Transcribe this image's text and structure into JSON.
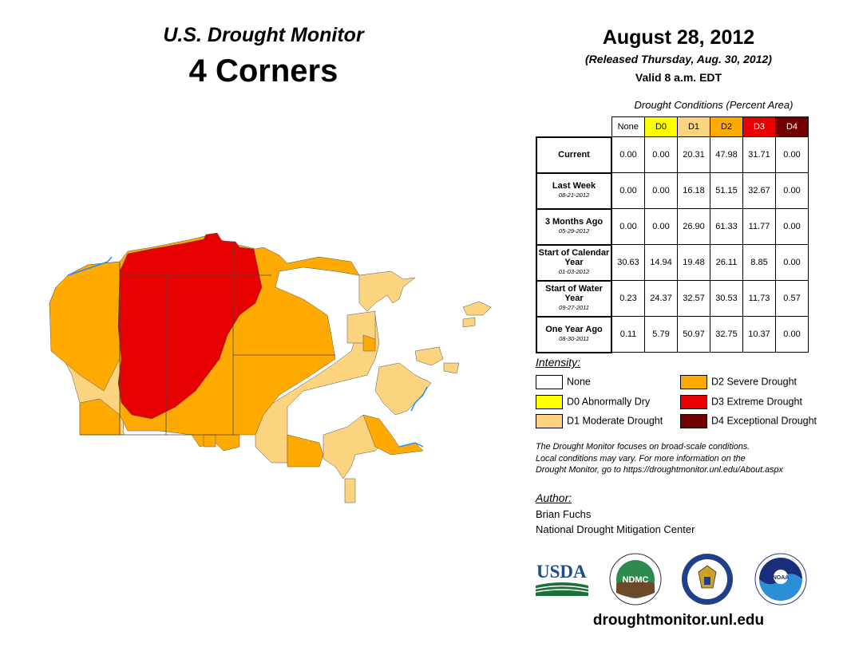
{
  "header": {
    "title": "U.S. Drought Monitor",
    "region": "4 Corners",
    "date": "August 28, 2012",
    "released": "(Released Thursday, Aug. 30, 2012)",
    "valid": "Valid 8 a.m. EDT"
  },
  "table": {
    "caption": "Drought Conditions (Percent Area)",
    "columns": [
      "None",
      "D0",
      "D1",
      "D2",
      "D3",
      "D4"
    ],
    "column_colors": [
      "#ffffff",
      "#ffff00",
      "#fcd37f",
      "#ffaa00",
      "#e60000",
      "#730000"
    ],
    "rows": [
      {
        "label": "Current",
        "date": "",
        "values": [
          "0.00",
          "0.00",
          "20.31",
          "47.98",
          "31.71",
          "0.00"
        ]
      },
      {
        "label": "Last Week",
        "date": "08-21-2012",
        "values": [
          "0.00",
          "0.00",
          "16.18",
          "51.15",
          "32.67",
          "0.00"
        ]
      },
      {
        "label": "3 Months Ago",
        "date": "05-29-2012",
        "values": [
          "0.00",
          "0.00",
          "26.90",
          "61.33",
          "11.77",
          "0.00"
        ]
      },
      {
        "label": "Start of Calendar Year",
        "date": "01-03-2012",
        "values": [
          "30.63",
          "14.94",
          "19.48",
          "26.11",
          "8.85",
          "0.00"
        ]
      },
      {
        "label": "Start of Water Year",
        "date": "09-27-2011",
        "values": [
          "0.23",
          "24.37",
          "32.57",
          "30.53",
          "11.73",
          "0.57"
        ]
      },
      {
        "label": "One Year Ago",
        "date": "08-30-2011",
        "values": [
          "0.11",
          "5.79",
          "50.97",
          "32.75",
          "10.37",
          "0.00"
        ]
      }
    ]
  },
  "legend": {
    "title": "Intensity:",
    "items": [
      {
        "label": "None",
        "color": "#ffffff"
      },
      {
        "label": "D0 Abnormally Dry",
        "color": "#ffff00"
      },
      {
        "label": "D1 Moderate Drought",
        "color": "#fcd37f"
      },
      {
        "label": "D2 Severe Drought",
        "color": "#ffaa00"
      },
      {
        "label": "D3 Extreme Drought",
        "color": "#e60000"
      },
      {
        "label": "D4 Exceptional Drought",
        "color": "#730000"
      }
    ]
  },
  "note": {
    "line1": "The Drought Monitor focuses on broad-scale conditions.",
    "line2": "Local conditions may vary. For more information on the",
    "line3": "Drought Monitor, go to https://droughtmonitor.unl.edu/About.aspx"
  },
  "author": {
    "title": "Author:",
    "name": "Brian Fuchs",
    "org": "National Drought Mitigation Center"
  },
  "logos": {
    "usda": "USDA",
    "ndmc": "NDMC",
    "noaa": "NOAA"
  },
  "website": "droughtmonitor.unl.edu"
}
